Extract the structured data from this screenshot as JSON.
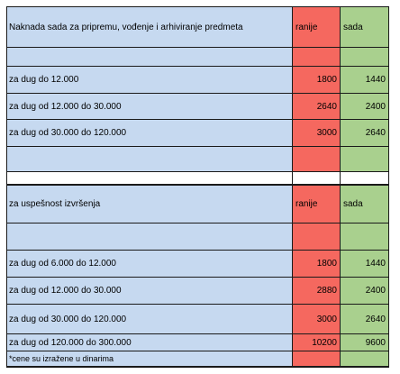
{
  "table1": {
    "header": {
      "label": "Naknada sada za pripremu, vođenje i arhiviranje predmeta",
      "old": "ranije",
      "new": "sada"
    },
    "rows": [
      {
        "label": "za dug do 12.000",
        "old": "1800",
        "new": "1440"
      },
      {
        "label": "za dug od 12.000 do 30.000",
        "old": "2640",
        "new": "2400"
      },
      {
        "label": "za dug od 30.000 do 120.000",
        "old": "3000",
        "new": "2640"
      }
    ]
  },
  "table2": {
    "header": {
      "label": "za uspešnost izvršenja",
      "old": "ranije",
      "new": "sada"
    },
    "rows": [
      {
        "label": "za dug od 6.000 do 12.000",
        "old": "1800",
        "new": "1440"
      },
      {
        "label": "za dug od 12.000 do 30.000",
        "old": "2880",
        "new": "2400"
      },
      {
        "label": "za dug od 30.000 do 120.000",
        "old": "3000",
        "new": "2640"
      },
      {
        "label": "za dug od 120.000 do 300.000",
        "old": "10200",
        "new": "9600"
      }
    ],
    "note": "*cene su izražene u dinarima"
  },
  "colors": {
    "label_bg": "#c6d9f0",
    "old_bg": "#f5685f",
    "new_bg": "#a9d08e"
  }
}
